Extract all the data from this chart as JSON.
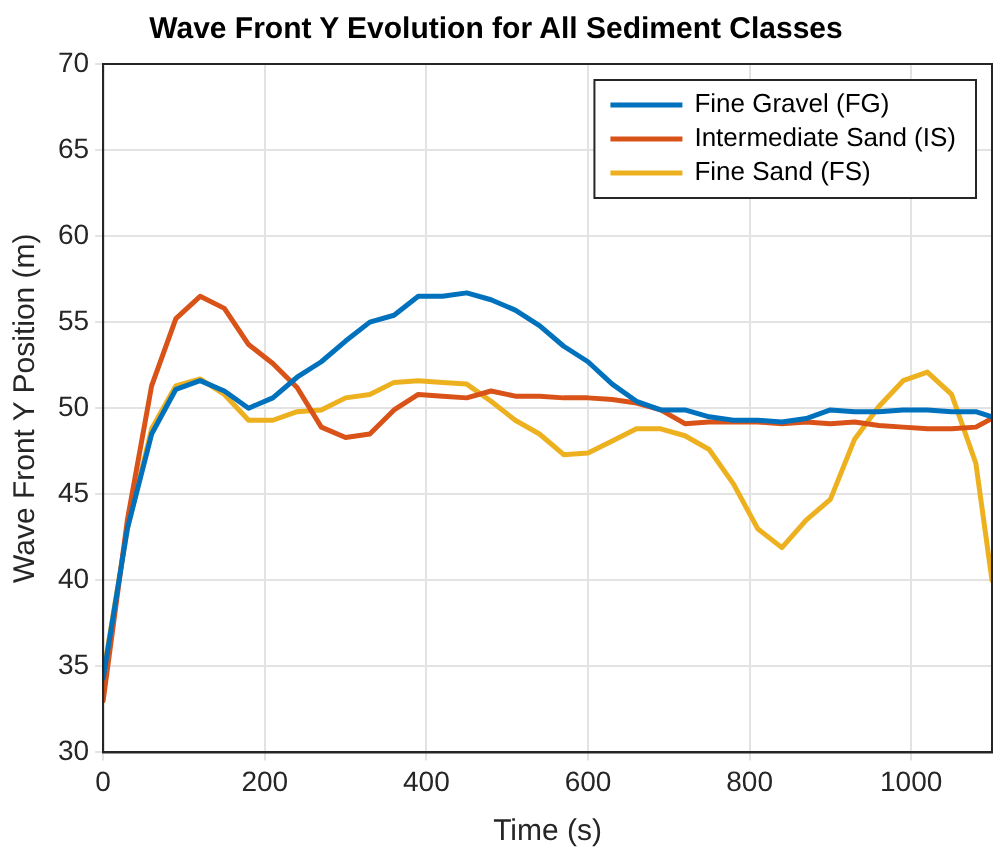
{
  "chart_data": {
    "type": "line",
    "title": "Wave Front Y Evolution for All Sediment Classes",
    "xlabel": "Time (s)",
    "ylabel": "Wave Front Y Position (m)",
    "x": [
      0,
      30,
      60,
      90,
      120,
      150,
      180,
      210,
      240,
      270,
      300,
      330,
      360,
      390,
      420,
      450,
      480,
      510,
      540,
      570,
      600,
      630,
      660,
      690,
      720,
      750,
      780,
      810,
      840,
      870,
      900,
      930,
      960,
      990,
      1020,
      1050,
      1080,
      1100
    ],
    "series": [
      {
        "name": "Fine Gravel (FG)",
        "color": "#0072bd",
        "values": [
          34.3,
          43,
          48.5,
          51.1,
          51.6,
          51,
          50,
          50.6,
          51.8,
          52.7,
          53.9,
          55,
          55.4,
          56.5,
          56.5,
          56.7,
          56.3,
          55.7,
          54.8,
          53.6,
          52.7,
          51.4,
          50.4,
          49.9,
          49.9,
          49.5,
          49.3,
          49.3,
          49.2,
          49.4,
          49.9,
          49.8,
          49.8,
          49.9,
          49.9,
          49.8,
          49.8,
          49.5
        ]
      },
      {
        "name": "Intermediate Sand (IS)",
        "color": "#d95319",
        "values": [
          33,
          43.5,
          51.3,
          55.2,
          56.5,
          55.8,
          53.7,
          52.6,
          51.2,
          48.9,
          48.3,
          48.5,
          49.9,
          50.8,
          50.7,
          50.6,
          51,
          50.7,
          50.7,
          50.6,
          50.6,
          50.5,
          50.3,
          49.9,
          49.1,
          49.2,
          49.2,
          49.2,
          49.1,
          49.2,
          49.1,
          49.2,
          49,
          48.9,
          48.8,
          48.8,
          48.9,
          49.4
        ]
      },
      {
        "name": "Fine Sand (FS)",
        "color": "#edb120",
        "values": [
          34.5,
          43,
          48.8,
          51.3,
          51.7,
          50.8,
          49.3,
          49.3,
          49.8,
          49.9,
          50.6,
          50.8,
          51.5,
          51.6,
          51.5,
          51.4,
          50.4,
          49.3,
          48.5,
          47.3,
          47.4,
          48.1,
          48.8,
          48.8,
          48.4,
          47.6,
          45.6,
          43,
          41.9,
          43.5,
          44.7,
          48.2,
          50.1,
          51.6,
          52.1,
          50.8,
          46.8,
          40
        ]
      }
    ],
    "xlim": [
      0,
      1100
    ],
    "xticks": [
      0,
      200,
      400,
      600,
      800,
      1000
    ],
    "ylim": [
      30,
      70
    ],
    "yticks": [
      30,
      35,
      40,
      45,
      50,
      55,
      60,
      65,
      70
    ],
    "grid": true,
    "legend": "top right",
    "marker": "none",
    "line_style": "solid"
  }
}
